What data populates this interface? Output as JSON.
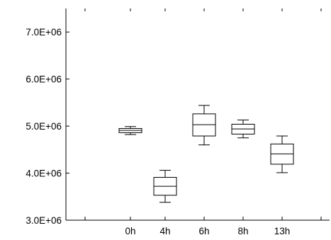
{
  "chart_data": {
    "type": "boxplot",
    "title": "",
    "xlabel": "",
    "ylabel": "",
    "categories": [
      "0h",
      "4h",
      "6h",
      "8h",
      "13h"
    ],
    "ylim": [
      3000000,
      7500000
    ],
    "yticks": [
      3000000,
      4000000,
      5000000,
      6000000,
      7000000
    ],
    "ytick_labels": [
      "3.0E+06",
      "4.0E+06",
      "5.0E+06",
      "6.0E+06",
      "7.0E+06"
    ],
    "grid": false,
    "boxes": [
      {
        "category": "0h",
        "whisker_low": 4820000,
        "q1": 4860000,
        "median": 4910000,
        "q3": 4950000,
        "whisker_high": 4990000
      },
      {
        "category": "4h",
        "whisker_low": 3380000,
        "q1": 3530000,
        "median": 3720000,
        "q3": 3910000,
        "whisker_high": 4060000
      },
      {
        "category": "6h",
        "whisker_low": 4600000,
        "q1": 4790000,
        "median": 5030000,
        "q3": 5260000,
        "whisker_high": 5440000
      },
      {
        "category": "8h",
        "whisker_low": 4750000,
        "q1": 4830000,
        "median": 4940000,
        "q3": 5040000,
        "whisker_high": 5130000
      },
      {
        "category": "13h",
        "whisker_low": 4010000,
        "q1": 4190000,
        "median": 4410000,
        "q3": 4620000,
        "whisker_high": 4790000
      }
    ],
    "colors": {
      "line": "#000000",
      "box_fill": "#ffffff"
    }
  }
}
